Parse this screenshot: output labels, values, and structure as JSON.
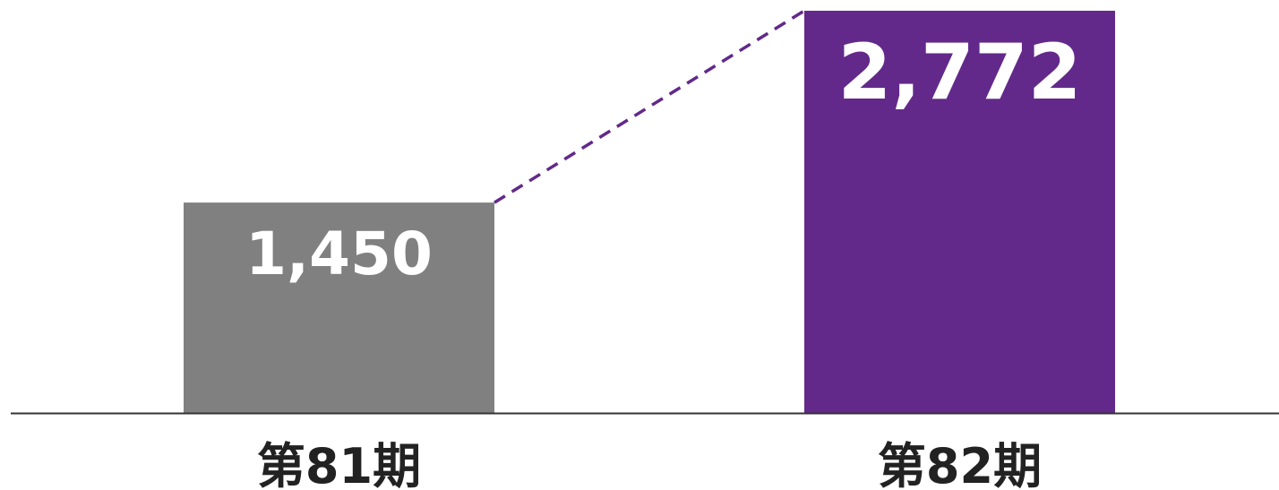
{
  "chart_data": {
    "type": "bar",
    "categories": [
      "第81期",
      "第82期"
    ],
    "values": [
      1450,
      2772
    ],
    "value_labels": [
      "1,450",
      "2,772"
    ],
    "ylim": [
      0,
      2772
    ],
    "grid": false,
    "legend": "none",
    "connector": "dashed line between bar tops",
    "colors": {
      "bars": [
        "#808080",
        "#62298a"
      ],
      "connector": "#62298a",
      "baseline": "#333333",
      "bar_label": "#ffffff",
      "category_label": "#222222"
    }
  }
}
